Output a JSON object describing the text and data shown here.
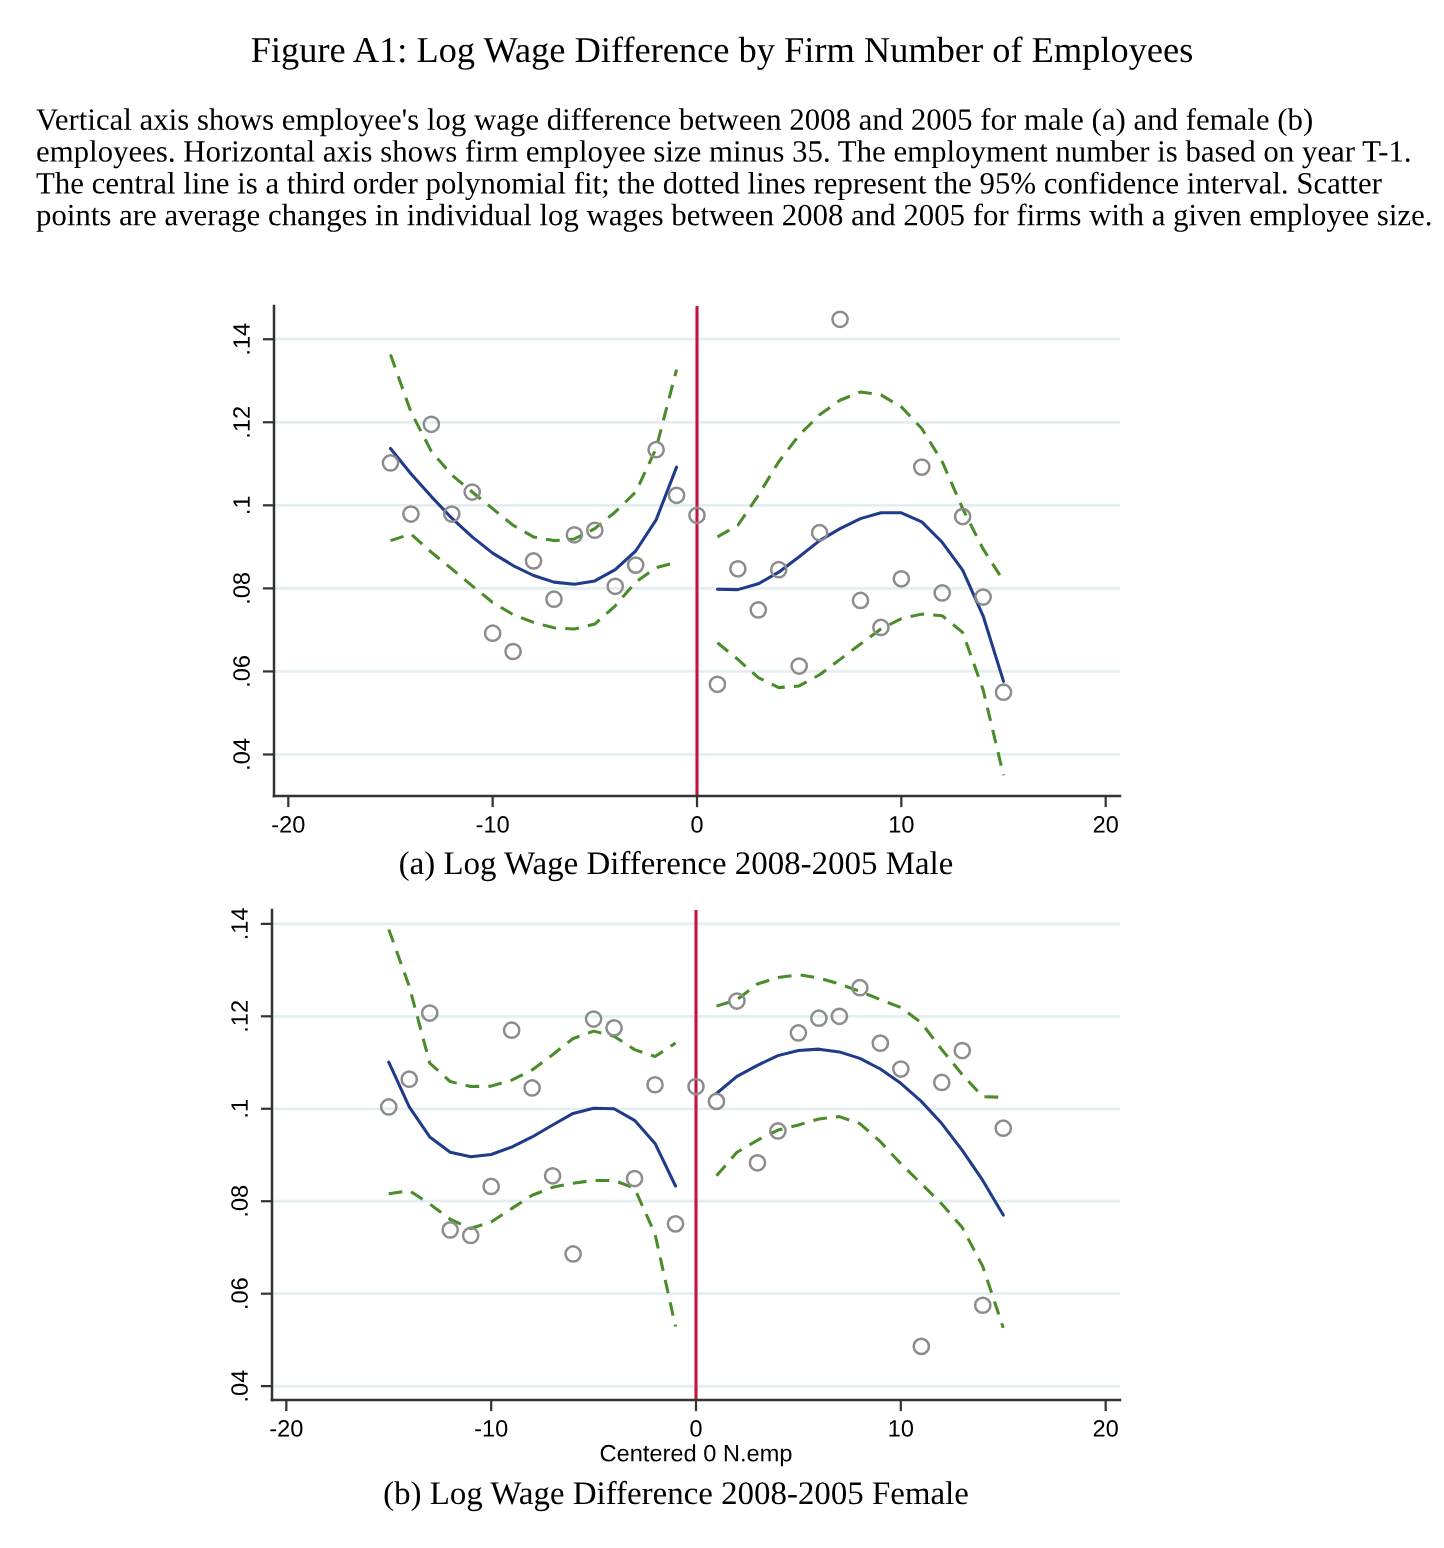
{
  "chart_data": [
    {
      "type": "scatter",
      "title": "Figure A1: Log Wage Difference by Firm Number of Employees",
      "subtitle": "Vertical axis shows employee's log wage difference between 2008 and 2005 for male (a) and female (b) employees. Horizontal axis shows firm employee size minus 35. The employment number is based on year T-1. The central line is a third order polynomial fit; the dotted lines represent the 95% confidence interval. Scatter points are average changes in individual log wages between 2008 and 2005 for firms with a given employee size.",
      "annotations": [
        "(a) Log Wage Difference 2008-2005 Male"
      ],
      "x": [
        -15,
        -14,
        -13,
        -12,
        -11,
        -10,
        -9,
        -8,
        -7,
        -6,
        -5,
        -4,
        -3,
        -2,
        -1,
        0,
        1,
        2,
        3,
        4,
        5,
        6,
        7,
        8,
        9,
        10,
        11,
        12,
        13,
        14,
        15
      ],
      "xlim": [
        -20.7,
        20.7
      ],
      "xticks": [
        -20,
        -10,
        0,
        10,
        20
      ],
      "ylim": [
        0.03,
        0.148
      ],
      "yticks": [
        {
          "value": 0.04,
          "label": ".04"
        },
        {
          "value": 0.06,
          "label": ".06"
        },
        {
          "value": 0.08,
          "label": ".08"
        },
        {
          "value": 0.1,
          "label": ".1"
        },
        {
          "value": 0.12,
          "label": ".12"
        },
        {
          "value": 0.14,
          "label": ".14"
        }
      ],
      "grid": "y",
      "ref_lines": [
        {
          "axis": "x",
          "value": 0,
          "color": "#c8103c"
        }
      ],
      "series": [
        {
          "marker": "circle",
          "color": "#8c8c8c",
          "values": [
            0.1102,
            0.0979,
            0.1195,
            0.0979,
            0.1032,
            0.0692,
            0.0648,
            0.0866,
            0.0774,
            0.0929,
            0.094,
            0.0805,
            0.0856,
            0.1134,
            0.1024,
            0.0976,
            0.0569,
            0.0847,
            0.0748,
            0.0845,
            0.0613,
            0.0934,
            0.1448,
            0.0771,
            0.0706,
            0.0823,
            0.1092,
            0.0789,
            0.0973,
            0.0779,
            0.055
          ]
        },
        {
          "type": "line",
          "line_style": "solid",
          "color": "#1f3b8a",
          "values": [
            0.1137,
            0.1076,
            0.1021,
            0.0969,
            0.0924,
            0.0885,
            0.0855,
            0.0831,
            0.0815,
            0.081,
            0.0818,
            0.0845,
            0.089,
            0.0965,
            0.1092,
            null,
            0.0798,
            0.0797,
            0.0811,
            0.0839,
            0.0876,
            0.0915,
            0.0944,
            0.0968,
            0.0982,
            0.0982,
            0.096,
            0.0911,
            0.0844,
            0.0734,
            0.0576
          ]
        },
        {
          "type": "line",
          "line_style": "dashed",
          "color": "#4a8c2a",
          "values": [
            0.1363,
            0.1225,
            0.113,
            0.1073,
            0.1032,
            0.0992,
            0.0952,
            0.0924,
            0.0915,
            0.0919,
            0.0944,
            0.0984,
            0.1032,
            0.1137,
            0.1327,
            null,
            0.0924,
            0.0952,
            0.1024,
            0.1105,
            0.1169,
            0.1218,
            0.1253,
            0.1273,
            0.1266,
            0.1237,
            0.1185,
            0.1105,
            0.0992,
            0.0895,
            0.0818
          ]
        },
        {
          "type": "line",
          "line_style": "dashed",
          "color": "#4a8c2a",
          "values": [
            0.0915,
            0.0931,
            0.0887,
            0.0847,
            0.0806,
            0.0766,
            0.0737,
            0.0718,
            0.0705,
            0.0702,
            0.0714,
            0.0758,
            0.0815,
            0.085,
            0.0863,
            null,
            0.0669,
            0.0629,
            0.0585,
            0.0561,
            0.0565,
            0.0592,
            0.0629,
            0.0666,
            0.0702,
            0.0727,
            0.0738,
            0.0734,
            0.0694,
            0.0556,
            0.035
          ]
        }
      ]
    },
    {
      "type": "scatter",
      "xlabel": "Centered 0 N.emp",
      "annotations": [
        "(b) Log Wage Difference 2008-2005 Female"
      ],
      "x": [
        -15,
        -14,
        -13,
        -12,
        -11,
        -10,
        -9,
        -8,
        -7,
        -6,
        -5,
        -4,
        -3,
        -2,
        -1,
        0,
        1,
        2,
        3,
        4,
        5,
        6,
        7,
        8,
        9,
        10,
        11,
        12,
        13,
        14,
        15
      ],
      "xlim": [
        -20.7,
        20.7
      ],
      "xticks": [
        -20,
        -10,
        0,
        10,
        20
      ],
      "ylim": [
        0.037,
        0.143
      ],
      "yticks": [
        {
          "value": 0.04,
          "label": ".04"
        },
        {
          "value": 0.06,
          "label": ".06"
        },
        {
          "value": 0.08,
          "label": ".08"
        },
        {
          "value": 0.1,
          "label": ".1"
        },
        {
          "value": 0.12,
          "label": ".12"
        },
        {
          "value": 0.14,
          "label": ".14"
        }
      ],
      "grid": "y",
      "ref_lines": [
        {
          "axis": "x",
          "value": 0,
          "color": "#c8103c"
        }
      ],
      "series": [
        {
          "marker": "circle",
          "color": "#8c8c8c",
          "values": [
            0.1004,
            0.1064,
            0.1207,
            0.0738,
            0.0726,
            0.0832,
            0.117,
            0.1045,
            0.0855,
            0.0686,
            0.1194,
            0.1175,
            0.0849,
            0.1052,
            0.0751,
            0.1048,
            0.1016,
            0.1233,
            0.0883,
            0.0952,
            0.1164,
            0.1196,
            0.12,
            0.1262,
            0.1142,
            0.1086,
            0.0486,
            0.1057,
            0.1126,
            0.0575,
            0.0958
          ]
        },
        {
          "type": "line",
          "line_style": "solid",
          "color": "#1f3b8a",
          "values": [
            0.1101,
            0.1004,
            0.0939,
            0.0906,
            0.0896,
            0.0901,
            0.0917,
            0.0939,
            0.0965,
            0.099,
            0.1001,
            0.1,
            0.0975,
            0.0925,
            0.0833,
            null,
            0.1033,
            0.107,
            0.1094,
            0.1115,
            0.1126,
            0.1129,
            0.1123,
            0.1109,
            0.1086,
            0.1055,
            0.1016,
            0.0968,
            0.091,
            0.0845,
            0.077
          ]
        },
        {
          "type": "line",
          "line_style": "dashed",
          "color": "#4a8c2a",
          "values": [
            0.1388,
            0.1265,
            0.1099,
            0.1059,
            0.1048,
            0.1049,
            0.1062,
            0.1084,
            0.1117,
            0.1152,
            0.1168,
            0.1157,
            0.1128,
            0.1113,
            0.1142,
            null,
            0.1222,
            0.1236,
            0.127,
            0.1284,
            0.129,
            0.1283,
            0.127,
            0.1254,
            0.1236,
            0.1219,
            0.1186,
            0.1128,
            0.1074,
            0.1026,
            0.1025
          ]
        },
        {
          "type": "line",
          "line_style": "dashed",
          "color": "#4a8c2a",
          "values": [
            0.0816,
            0.0823,
            0.0794,
            0.0761,
            0.0741,
            0.0755,
            0.0784,
            0.0813,
            0.083,
            0.0839,
            0.0845,
            0.0845,
            0.0828,
            0.0729,
            0.0529,
            null,
            0.0855,
            0.0906,
            0.0932,
            0.0954,
            0.0965,
            0.0978,
            0.0983,
            0.0968,
            0.0929,
            0.0881,
            0.0838,
            0.0794,
            0.0743,
            0.0659,
            0.0526
          ]
        }
      ]
    }
  ]
}
